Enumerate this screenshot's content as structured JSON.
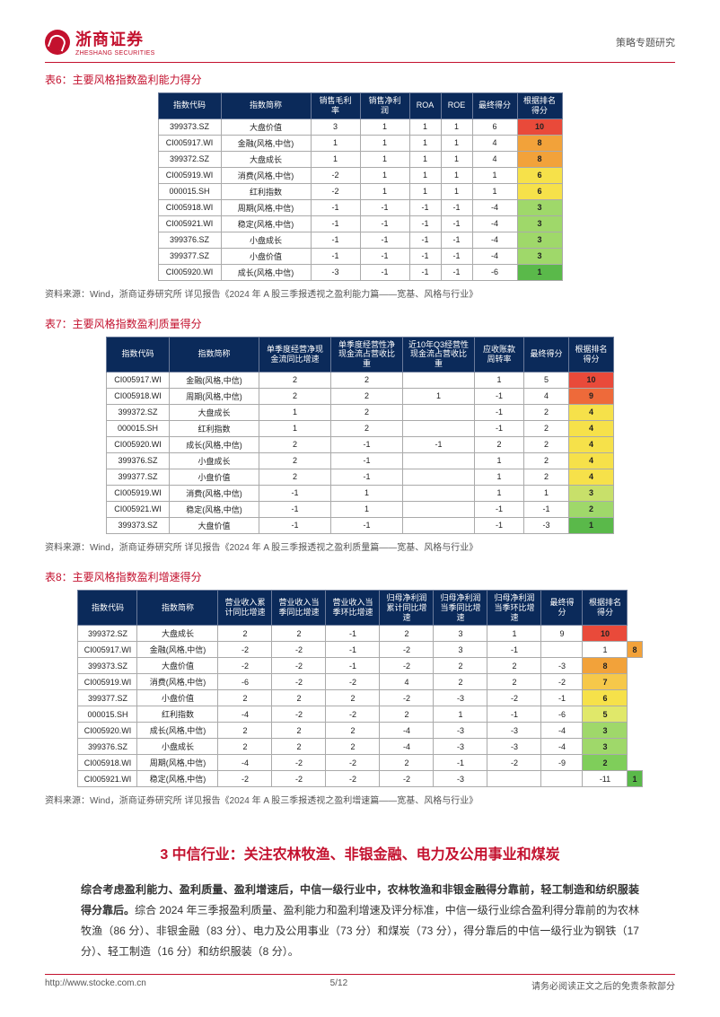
{
  "header": {
    "logo_cn": "浙商证券",
    "logo_en": "ZHESHANG SECURITIES",
    "doc_type": "策略专题研究"
  },
  "table6": {
    "title": "表6：主要风格指数盈利能力得分",
    "columns": [
      "指数代码",
      "指数简称",
      "销售毛利率",
      "销售净利润",
      "ROA",
      "ROE",
      "最终得分",
      "根据排名得分"
    ],
    "rows": [
      {
        "cells": [
          "399373.SZ",
          "大盘价值",
          "3",
          "1",
          "1",
          "1",
          "6"
        ],
        "rank": "10",
        "rank_color": "#e94a3a"
      },
      {
        "cells": [
          "CI005917.WI",
          "金融(风格,中信)",
          "1",
          "1",
          "1",
          "1",
          "4"
        ],
        "rank": "8",
        "rank_color": "#f2a23a"
      },
      {
        "cells": [
          "399372.SZ",
          "大盘成长",
          "1",
          "1",
          "1",
          "1",
          "4"
        ],
        "rank": "8",
        "rank_color": "#f2a23a"
      },
      {
        "cells": [
          "CI005919.WI",
          "消费(风格,中信)",
          "-2",
          "1",
          "1",
          "1",
          "1"
        ],
        "rank": "6",
        "rank_color": "#f6e14a"
      },
      {
        "cells": [
          "000015.SH",
          "红利指数",
          "-2",
          "1",
          "1",
          "1",
          "1"
        ],
        "rank": "6",
        "rank_color": "#f6e14a"
      },
      {
        "cells": [
          "CI005918.WI",
          "周期(风格,中信)",
          "-1",
          "-1",
          "-1",
          "-1",
          "-4"
        ],
        "rank": "3",
        "rank_color": "#9fd86a"
      },
      {
        "cells": [
          "CI005921.WI",
          "稳定(风格,中信)",
          "-1",
          "-1",
          "-1",
          "-1",
          "-4"
        ],
        "rank": "3",
        "rank_color": "#9fd86a"
      },
      {
        "cells": [
          "399376.SZ",
          "小盘成长",
          "-1",
          "-1",
          "-1",
          "-1",
          "-4"
        ],
        "rank": "3",
        "rank_color": "#9fd86a"
      },
      {
        "cells": [
          "399377.SZ",
          "小盘价值",
          "-1",
          "-1",
          "-1",
          "-1",
          "-4"
        ],
        "rank": "3",
        "rank_color": "#9fd86a"
      },
      {
        "cells": [
          "CI005920.WI",
          "成长(风格,中信)",
          "-3",
          "-1",
          "-1",
          "-1",
          "-6"
        ],
        "rank": "1",
        "rank_color": "#5ab94a"
      }
    ],
    "source": "资料来源：Wind，浙商证券研究所 详见报告《2024 年 A 股三季报透视之盈利能力篇——宽基、风格与行业》"
  },
  "table7": {
    "title": "表7：主要风格指数盈利质量得分",
    "columns": [
      "指数代码",
      "指数简称",
      "单季度经营净现金流同比增速",
      "单季度经营性净现金流占营收比重",
      "近10年Q3经营性现金流占营收比重",
      "应收账款周转率",
      "最终得分",
      "根据排名得分"
    ],
    "rows": [
      {
        "cells": [
          "CI005917.WI",
          "金融(风格,中信)",
          "2",
          "2",
          "",
          "1",
          "5"
        ],
        "rank": "10",
        "rank_color": "#e94a3a"
      },
      {
        "cells": [
          "CI005918.WI",
          "周期(风格,中信)",
          "2",
          "2",
          "1",
          "-1",
          "4"
        ],
        "rank": "9",
        "rank_color": "#ee6a3a"
      },
      {
        "cells": [
          "399372.SZ",
          "大盘成长",
          "1",
          "2",
          "",
          "-1",
          "2"
        ],
        "rank": "4",
        "rank_color": "#f6e14a"
      },
      {
        "cells": [
          "000015.SH",
          "红利指数",
          "1",
          "2",
          "",
          "-1",
          "2"
        ],
        "rank": "4",
        "rank_color": "#f6e14a"
      },
      {
        "cells": [
          "CI005920.WI",
          "成长(风格,中信)",
          "2",
          "-1",
          "-1",
          "2",
          "2"
        ],
        "rank": "4",
        "rank_color": "#f6e14a"
      },
      {
        "cells": [
          "399376.SZ",
          "小盘成长",
          "2",
          "-1",
          "",
          "1",
          "2"
        ],
        "rank": "4",
        "rank_color": "#f6e14a"
      },
      {
        "cells": [
          "399377.SZ",
          "小盘价值",
          "2",
          "-1",
          "",
          "1",
          "2"
        ],
        "rank": "4",
        "rank_color": "#f6e14a"
      },
      {
        "cells": [
          "CI005919.WI",
          "消费(风格,中信)",
          "-1",
          "1",
          "",
          "1",
          "1"
        ],
        "rank": "3",
        "rank_color": "#c8e06a"
      },
      {
        "cells": [
          "CI005921.WI",
          "稳定(风格,中信)",
          "-1",
          "1",
          "",
          "-1",
          "-1"
        ],
        "rank": "2",
        "rank_color": "#9fd86a"
      },
      {
        "cells": [
          "399373.SZ",
          "大盘价值",
          "-1",
          "-1",
          "",
          "-1",
          "-3"
        ],
        "rank": "1",
        "rank_color": "#5ab94a"
      }
    ],
    "source": "资料来源：Wind，浙商证券研究所 详见报告《2024 年 A 股三季报透视之盈利质量篇——宽基、风格与行业》"
  },
  "table8": {
    "title": "表8：主要风格指数盈利增速得分",
    "columns": [
      "指数代码",
      "指数简称",
      "营业收入累计同比增速",
      "营业收入当季同比增速",
      "营业收入当季环比增速",
      "归母净利润累计同比增速",
      "归母净利润当季同比增速",
      "归母净利润当季环比增速",
      "最终得分",
      "根据排名得分"
    ],
    "rows": [
      {
        "cells": [
          "399372.SZ",
          "大盘成长",
          "2",
          "2",
          "-1",
          "2",
          "3",
          "1",
          "9"
        ],
        "rank": "10",
        "rank_color": "#e94a3a"
      },
      {
        "cells": [
          "CI005917.WI",
          "金融(风格,中信)",
          "-2",
          "-2",
          "-1",
          "-2",
          "3",
          "-1",
          "",
          "1"
        ],
        "rank": "8",
        "rank_color": "#f2a23a"
      },
      {
        "cells": [
          "399373.SZ",
          "大盘价值",
          "-2",
          "-2",
          "-1",
          "-2",
          "2",
          "2",
          "-3"
        ],
        "rank": "8",
        "rank_color": "#f2a23a"
      },
      {
        "cells": [
          "CI005919.WI",
          "消费(风格,中信)",
          "-6",
          "-2",
          "-2",
          "4",
          "2",
          "2",
          "-2"
        ],
        "rank": "7",
        "rank_color": "#f6c84a"
      },
      {
        "cells": [
          "399377.SZ",
          "小盘价值",
          "2",
          "2",
          "2",
          "-2",
          "-3",
          "-2",
          "-1"
        ],
        "rank": "6",
        "rank_color": "#f6e14a"
      },
      {
        "cells": [
          "000015.SH",
          "红利指数",
          "-4",
          "-2",
          "-2",
          "2",
          "1",
          "-1",
          "-6"
        ],
        "rank": "5",
        "rank_color": "#e0e86a"
      },
      {
        "cells": [
          "CI005920.WI",
          "成长(风格,中信)",
          "2",
          "2",
          "2",
          "-4",
          "-3",
          "-3",
          "-4"
        ],
        "rank": "3",
        "rank_color": "#9fd86a"
      },
      {
        "cells": [
          "399376.SZ",
          "小盘成长",
          "2",
          "2",
          "2",
          "-4",
          "-3",
          "-3",
          "-4"
        ],
        "rank": "3",
        "rank_color": "#9fd86a"
      },
      {
        "cells": [
          "CI005918.WI",
          "周期(风格,中信)",
          "-4",
          "-2",
          "-2",
          "2",
          "-1",
          "-2",
          "-9"
        ],
        "rank": "2",
        "rank_color": "#7fce5a"
      },
      {
        "cells": [
          "CI005921.WI",
          "稳定(风格,中信)",
          "-2",
          "-2",
          "-2",
          "-2",
          "-3",
          "",
          "",
          "-11"
        ],
        "rank": "1",
        "rank_color": "#5ab94a"
      }
    ],
    "source": "资料来源：Wind，浙商证券研究所 详见报告《2024 年 A 股三季报透视之盈利增速篇——宽基、风格与行业》"
  },
  "section": {
    "title": "3 中信行业：关注农林牧渔、非银金融、电力及公用事业和煤炭",
    "bold_lead": "综合考虑盈利能力、盈利质量、盈利增速后，中信一级行业中，农林牧渔和非银金融得分靠前，轻工制造和纺织服装得分靠后。",
    "body": "综合 2024 年三季报盈利质量、盈利能力和盈利增速及评分标准，中信一级行业综合盈利得分靠前的为农林牧渔（86 分）、非银金融（83 分）、电力及公用事业（73 分）和煤炭（73 分），得分靠后的中信一级行业为钢铁（17 分）、轻工制造（16 分）和纺织服装（8 分）。"
  },
  "footer": {
    "url": "http://www.stocke.com.cn",
    "page": "5/12",
    "disclaimer": "请务必阅读正文之后的免责条款部分"
  }
}
